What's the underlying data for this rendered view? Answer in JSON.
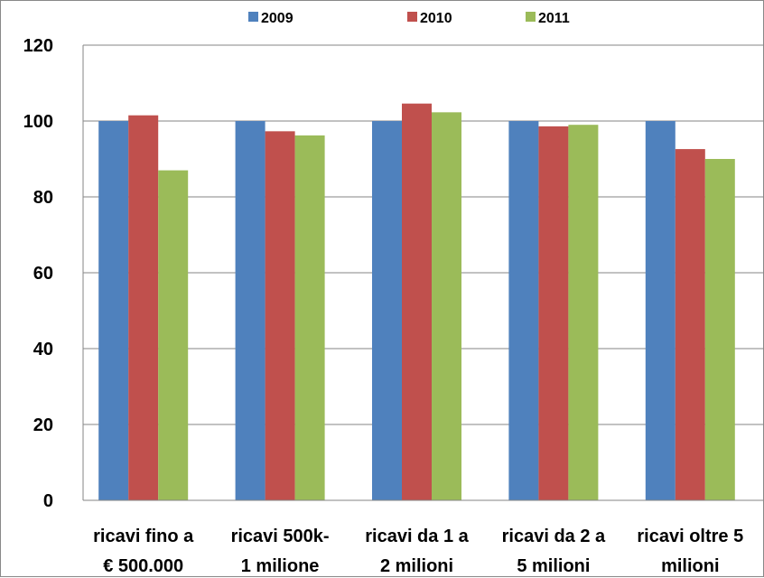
{
  "chart_data": {
    "type": "bar",
    "categories": [
      [
        "ricavi fino a",
        "€ 500.000"
      ],
      [
        "ricavi 500k-",
        "1 milione"
      ],
      [
        "ricavi da 1 a",
        "2 milioni"
      ],
      [
        "ricavi da 2 a",
        "5 milioni"
      ],
      [
        "ricavi oltre 5",
        "milioni"
      ]
    ],
    "series": [
      {
        "name": "2009",
        "color": "#4F81BD",
        "values": [
          100,
          100,
          100,
          100,
          100
        ]
      },
      {
        "name": "2010",
        "color": "#C0504D",
        "values": [
          101.5,
          97.3,
          104.6,
          98.6,
          92.6
        ]
      },
      {
        "name": "2011",
        "color": "#9BBB59",
        "values": [
          87,
          96.2,
          102.3,
          99,
          90
        ]
      }
    ],
    "ylim": [
      0,
      120
    ],
    "yticks": [
      0,
      20,
      40,
      60,
      80,
      100,
      120
    ],
    "grid": true,
    "legend_position": "top",
    "title": "",
    "xlabel": "",
    "ylabel": ""
  }
}
